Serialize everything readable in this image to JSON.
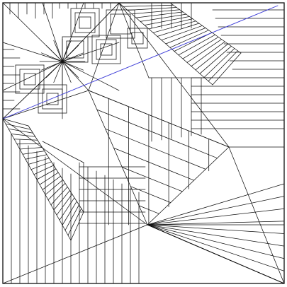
{
  "diagram": {
    "type": "origami-crease-pattern",
    "colors": {
      "background": "#ffffff",
      "crease": "#111111",
      "guide_line": "#3535d6"
    },
    "square_grid_divisions": 16
  }
}
